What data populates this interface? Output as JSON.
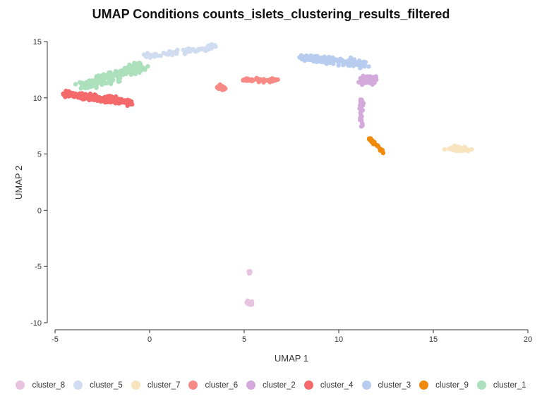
{
  "chart_data": {
    "type": "scatter",
    "title": "UMAP Conditions counts_islets_clustering_results_filtered",
    "xlabel": "UMAP 1",
    "ylabel": "UMAP 2",
    "xlim": [
      -5,
      20
    ],
    "ylim": [
      -10,
      15
    ],
    "xticks": [
      "-5",
      "0",
      "5",
      "10",
      "15",
      "20"
    ],
    "yticks": [
      "15",
      "10",
      "5",
      "0",
      "-5",
      "-10"
    ],
    "grid": false,
    "legend_position": "bottom",
    "legend": [
      {
        "name": "cluster_8",
        "color": "#e8c3e0"
      },
      {
        "name": "cluster_5",
        "color": "#d0dcf0"
      },
      {
        "name": "cluster_7",
        "color": "#f8e4be"
      },
      {
        "name": "cluster_6",
        "color": "#f88a86"
      },
      {
        "name": "cluster_2",
        "color": "#d4aadc"
      },
      {
        "name": "cluster_4",
        "color": "#f4696a"
      },
      {
        "name": "cluster_3",
        "color": "#b8ccef"
      },
      {
        "name": "cluster_9",
        "color": "#f08a0c"
      },
      {
        "name": "cluster_1",
        "color": "#ace0bc"
      }
    ],
    "series": [
      {
        "name": "cluster_1",
        "approx_region": {
          "x": [
            -3.8,
            -0.2
          ],
          "y": [
            10.5,
            13.3
          ]
        },
        "center": [
          -2.2,
          12.0
        ],
        "count_approx": 220
      },
      {
        "name": "cluster_4",
        "approx_region": {
          "x": [
            -4.8,
            -1.0
          ],
          "y": [
            9.2,
            11.2
          ]
        },
        "center": [
          -3.0,
          10.1
        ],
        "count_approx": 180
      },
      {
        "name": "cluster_5",
        "approx_region": {
          "x": [
            -0.3,
            3.5
          ],
          "y": [
            13.0,
            14.8
          ]
        },
        "center": [
          1.2,
          14.2
        ],
        "count_approx": 70
      },
      {
        "name": "cluster_6",
        "approx_region": {
          "x": [
            3.3,
            7.0
          ],
          "y": [
            10.0,
            12.2
          ]
        },
        "center": [
          5.0,
          11.3
        ],
        "count_approx": 80
      },
      {
        "name": "cluster_3",
        "approx_region": {
          "x": [
            7.6,
            11.5
          ],
          "y": [
            12.0,
            14.2
          ]
        },
        "center": [
          9.5,
          13.2
        ],
        "count_approx": 170
      },
      {
        "name": "cluster_2",
        "approx_region": {
          "x": [
            10.2,
            12.7
          ],
          "y": [
            7.0,
            13.4
          ]
        },
        "center": [
          11.5,
          11.3
        ],
        "count_approx": 120
      },
      {
        "name": "cluster_9",
        "approx_region": {
          "x": [
            11.4,
            12.6
          ],
          "y": [
            5.0,
            6.6
          ]
        },
        "center": [
          11.8,
          5.8
        ],
        "count_approx": 30
      },
      {
        "name": "cluster_7",
        "approx_region": {
          "x": [
            15.2,
            17.4
          ],
          "y": [
            4.7,
            6.0
          ]
        },
        "center": [
          16.2,
          5.4
        ],
        "count_approx": 70
      },
      {
        "name": "cluster_8",
        "approx_region": {
          "x": [
            4.9,
            5.9
          ],
          "y": [
            -8.8,
            -5.2
          ]
        },
        "center": [
          5.3,
          -7.5
        ],
        "count_approx": 25
      }
    ]
  }
}
